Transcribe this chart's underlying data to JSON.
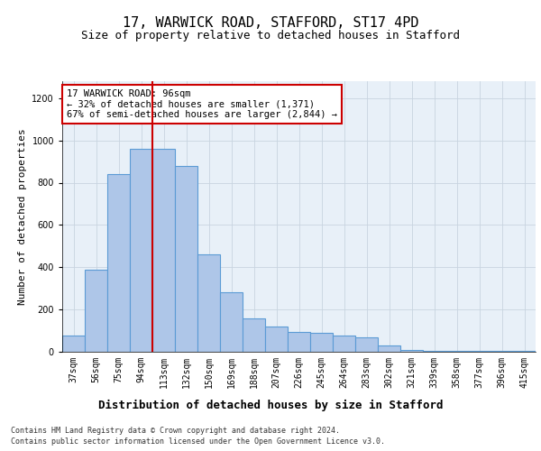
{
  "title_line1": "17, WARWICK ROAD, STAFFORD, ST17 4PD",
  "title_line2": "Size of property relative to detached houses in Stafford",
  "xlabel": "Distribution of detached houses by size in Stafford",
  "ylabel": "Number of detached properties",
  "categories": [
    "37sqm",
    "56sqm",
    "75sqm",
    "94sqm",
    "113sqm",
    "132sqm",
    "150sqm",
    "169sqm",
    "188sqm",
    "207sqm",
    "226sqm",
    "245sqm",
    "264sqm",
    "283sqm",
    "302sqm",
    "321sqm",
    "339sqm",
    "358sqm",
    "377sqm",
    "396sqm",
    "415sqm"
  ],
  "values": [
    75,
    390,
    840,
    960,
    960,
    880,
    460,
    280,
    160,
    120,
    95,
    90,
    75,
    70,
    30,
    10,
    5,
    5,
    5,
    5,
    5
  ],
  "bar_color": "#aec6e8",
  "bar_edge_color": "#5b9bd5",
  "bar_linewidth": 0.8,
  "vline_color": "#cc0000",
  "annotation_line1": "17 WARWICK ROAD: 96sqm",
  "annotation_line2": "← 32% of detached houses are smaller (1,371)",
  "annotation_line3": "67% of semi-detached houses are larger (2,844) →",
  "annotation_box_color": "#ffffff",
  "annotation_box_edge_color": "#cc0000",
  "ylim": [
    0,
    1280
  ],
  "yticks": [
    0,
    200,
    400,
    600,
    800,
    1000,
    1200
  ],
  "grid_color": "#c8d4e0",
  "background_color": "#e8f0f8",
  "footer_line1": "Contains HM Land Registry data © Crown copyright and database right 2024.",
  "footer_line2": "Contains public sector information licensed under the Open Government Licence v3.0.",
  "title_fontsize": 11,
  "subtitle_fontsize": 9,
  "xlabel_fontsize": 9,
  "ylabel_fontsize": 8,
  "tick_fontsize": 7,
  "footer_fontsize": 6,
  "annotation_fontsize": 7.5
}
